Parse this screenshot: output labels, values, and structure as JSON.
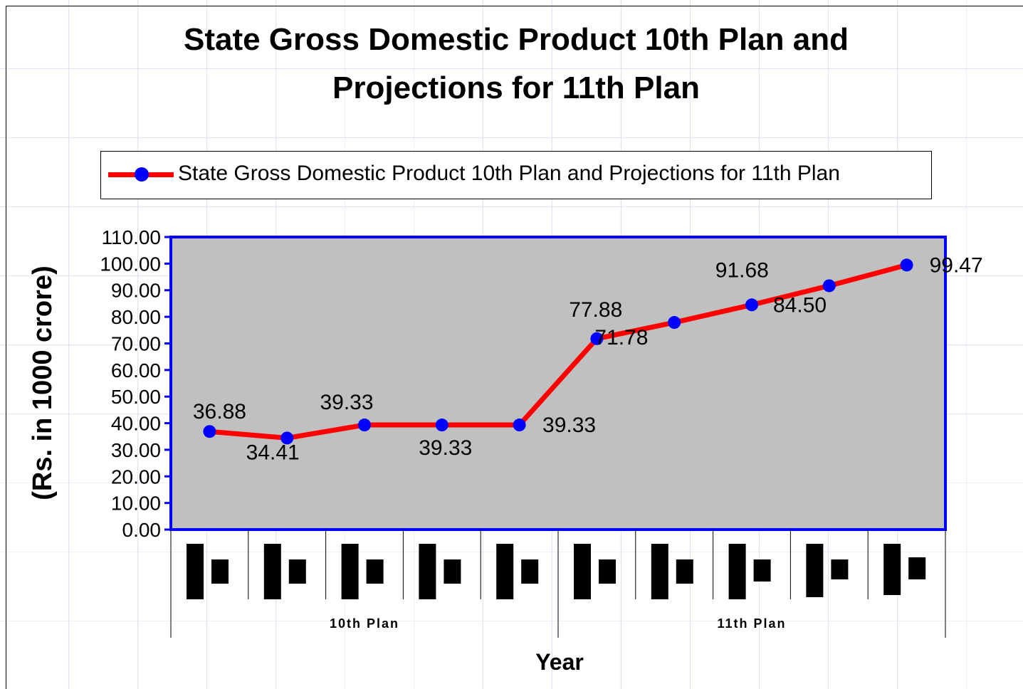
{
  "chart_data": {
    "type": "line",
    "title": "State Gross Domestic Product 10th Plan and\nProjections for 11th Plan",
    "xlabel": "Year",
    "ylabel": "(Rs. in 1000 crore)",
    "ylim": [
      0,
      110
    ],
    "ytick_step": 10,
    "ytick_labels": [
      "0.00",
      "10.00",
      "20.00",
      "30.00",
      "40.00",
      "50.00",
      "60.00",
      "70.00",
      "80.00",
      "90.00",
      "100.00",
      "110.00"
    ],
    "legend": "top",
    "grid": false,
    "plot_background": "#c0c0c0",
    "plot_border_color": "#0000ff",
    "line_color": "#ff0000",
    "marker_color": "#0000ff",
    "category_groups": [
      {
        "label": "10th Plan",
        "count": 5
      },
      {
        "label": "11th Plan",
        "count": 5
      }
    ],
    "series": [
      {
        "name": "State Gross Domestic Product 10th Plan and Projections for 11th Plan",
        "values": [
          36.88,
          34.41,
          39.33,
          39.33,
          39.33,
          71.78,
          77.88,
          84.5,
          91.68,
          99.47
        ],
        "data_labels": [
          "36.88",
          "34.41",
          "39.33",
          "39.33",
          "39.33",
          "71.78",
          "77.88",
          "84.50",
          "91.68",
          "99.47"
        ]
      }
    ]
  }
}
